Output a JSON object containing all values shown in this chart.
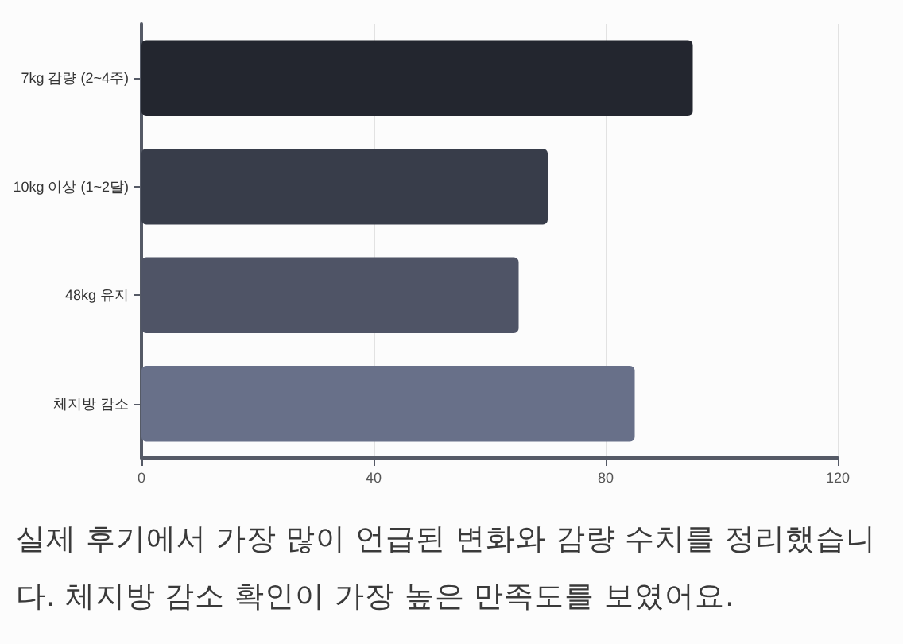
{
  "chart_data": {
    "type": "bar",
    "orientation": "horizontal",
    "categories": [
      "7kg 감량 (2~4주)",
      "10kg 이상 (1~2달)",
      "48kg 유지",
      "체지방 감소"
    ],
    "values": [
      95,
      70,
      65,
      85
    ],
    "colors": [
      "#23262f",
      "#383d4a",
      "#4f5466",
      "#687089"
    ],
    "xlim": [
      0,
      120
    ],
    "xticks": [
      0,
      40,
      80,
      120
    ],
    "grid": "x",
    "annotations": [
      "실제 후기에서 가장 많이 언급된 변화와 감량 수치를 정리했습니다. 체지방 감소 확인이 가장 높은 만족도를 보였어요."
    ]
  }
}
